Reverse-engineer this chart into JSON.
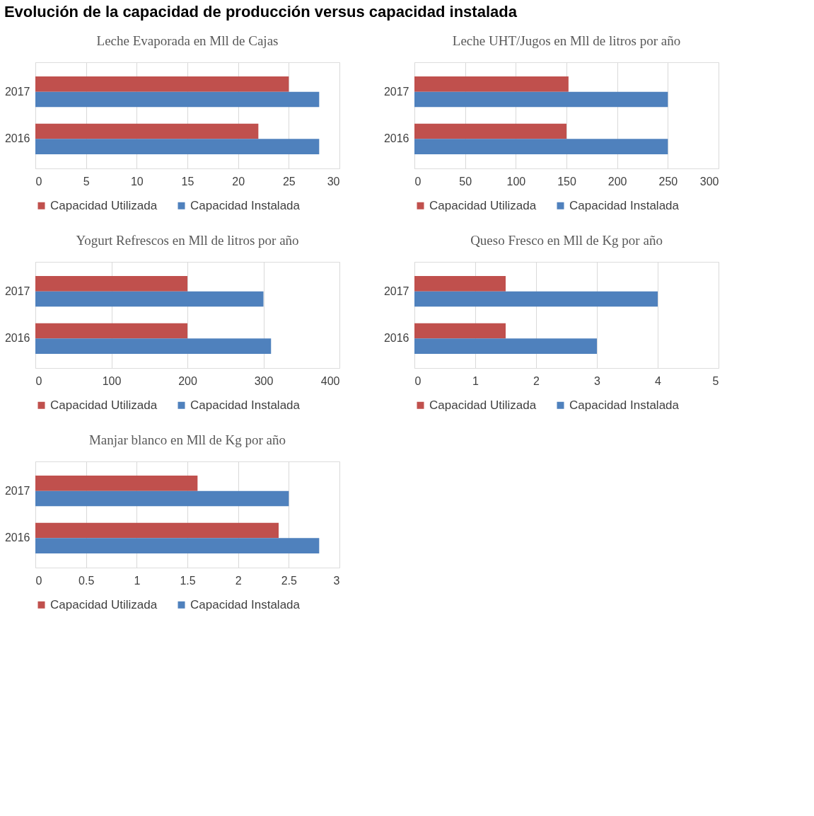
{
  "chart_data": [
    {
      "type": "other",
      "title": "Evolución de la capacidad de producción versus capacidad instalada"
    },
    {
      "type": "bar",
      "orientation": "horizontal",
      "title": "Leche Evaporada en Mll de Cajas",
      "categories": [
        "2017",
        "2016"
      ],
      "series": [
        {
          "name": "Capacidad Utilizada",
          "color": "#c0504d",
          "values": [
            25,
            22
          ]
        },
        {
          "name": "Capacidad Instalada",
          "color": "#4f81bd",
          "values": [
            28,
            28
          ]
        }
      ],
      "xlim": [
        0,
        30
      ],
      "xticks": [
        0,
        5,
        10,
        15,
        20,
        25,
        30
      ],
      "grid": "x",
      "legend": "bottom"
    },
    {
      "type": "bar",
      "orientation": "horizontal",
      "title": "Leche UHT/Jugos en Mll de litros por año",
      "categories": [
        "2017",
        "2016"
      ],
      "series": [
        {
          "name": "Capacidad Utilizada",
          "color": "#c0504d",
          "values": [
            152,
            150
          ]
        },
        {
          "name": "Capacidad Instalada",
          "color": "#4f81bd",
          "values": [
            250,
            250
          ]
        }
      ],
      "xlim": [
        0,
        300
      ],
      "xticks": [
        0,
        50,
        100,
        150,
        200,
        250,
        300
      ],
      "grid": "x",
      "legend": "bottom"
    },
    {
      "type": "bar",
      "orientation": "horizontal",
      "title": "Yogurt Refrescos en Mll de litros por año",
      "categories": [
        "2017",
        "2016"
      ],
      "series": [
        {
          "name": "Capacidad Utilizada",
          "color": "#c0504d",
          "values": [
            200,
            200
          ]
        },
        {
          "name": "Capacidad Instalada",
          "color": "#4f81bd",
          "values": [
            300,
            310
          ]
        }
      ],
      "xlim": [
        0,
        400
      ],
      "xticks": [
        0,
        100,
        200,
        300,
        400
      ],
      "grid": "x",
      "legend": "bottom"
    },
    {
      "type": "bar",
      "orientation": "horizontal",
      "title": "Queso Fresco en Mll de Kg por año",
      "categories": [
        "2017",
        "2016"
      ],
      "series": [
        {
          "name": "Capacidad Utilizada",
          "color": "#c0504d",
          "values": [
            1.5,
            1.5
          ]
        },
        {
          "name": "Capacidad Instalada",
          "color": "#4f81bd",
          "values": [
            4,
            3
          ]
        }
      ],
      "xlim": [
        0,
        5
      ],
      "xticks": [
        0,
        1,
        2,
        3,
        4,
        5
      ],
      "grid": "x",
      "legend": "bottom"
    },
    {
      "type": "bar",
      "orientation": "horizontal",
      "title": "Manjar blanco en Mll de Kg por año",
      "categories": [
        "2017",
        "2016"
      ],
      "series": [
        {
          "name": "Capacidad Utilizada",
          "color": "#c0504d",
          "values": [
            1.6,
            2.4
          ]
        },
        {
          "name": "Capacidad Instalada",
          "color": "#4f81bd",
          "values": [
            2.5,
            2.8
          ]
        }
      ],
      "xlim": [
        0,
        3
      ],
      "xticks": [
        0,
        0.5,
        1,
        1.5,
        2,
        2.5,
        3
      ],
      "grid": "x",
      "legend": "bottom"
    }
  ]
}
